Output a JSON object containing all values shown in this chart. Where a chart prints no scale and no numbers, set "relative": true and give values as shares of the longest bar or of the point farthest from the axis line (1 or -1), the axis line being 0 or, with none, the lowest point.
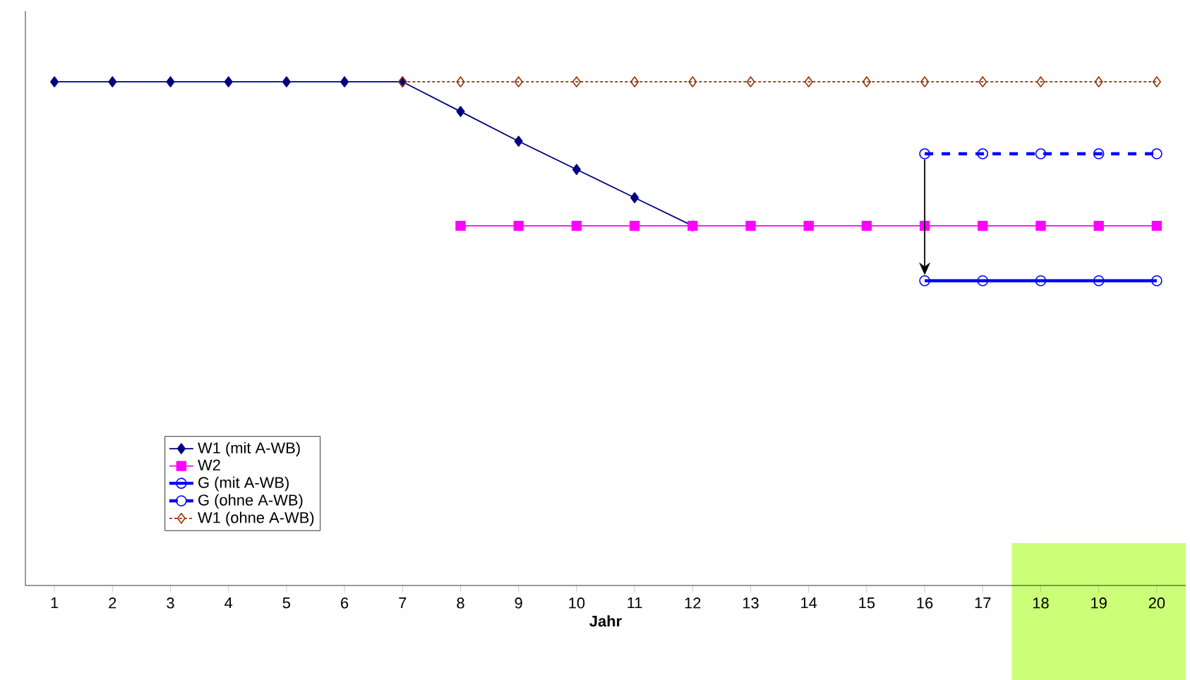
{
  "chart_data": {
    "type": "line",
    "relative": true,
    "xlabel": "Jahr",
    "tick_labels": "x",
    "legend": "bottom left",
    "grid": false,
    "categories": [
      "1",
      "2",
      "3",
      "4",
      "5",
      "6",
      "7",
      "8",
      "9",
      "10",
      "11",
      "12",
      "13",
      "14",
      "15",
      "16",
      "17",
      "18",
      "19",
      "20"
    ],
    "bands": [
      {
        "axis": "x",
        "from": "18",
        "to": "20",
        "color": "#ccff77"
      }
    ],
    "series": [
      {
        "name": "W1 (mit A-WB)",
        "color": "#000080",
        "marker": "diamond",
        "line_style": "solid",
        "values": [
          1,
          1,
          1,
          1,
          1,
          1,
          1,
          0.941,
          0.882,
          0.826,
          0.77,
          0.714,
          null,
          null,
          null,
          null,
          null,
          null,
          null,
          null
        ]
      },
      {
        "name": "W2",
        "color": "#ff00ff",
        "marker": "square",
        "line_style": "solid",
        "values": [
          null,
          null,
          null,
          null,
          null,
          null,
          null,
          0.714,
          0.714,
          0.714,
          0.714,
          0.714,
          0.714,
          0.714,
          0.714,
          0.714,
          0.714,
          0.714,
          0.714,
          0.714
        ]
      },
      {
        "name": "G (mit A-WB)",
        "color": "#0000ff",
        "marker": "circle",
        "line_style": "solid",
        "values": [
          null,
          null,
          null,
          null,
          null,
          null,
          null,
          null,
          null,
          null,
          null,
          null,
          null,
          null,
          null,
          0.605,
          0.605,
          0.605,
          0.605,
          0.605
        ]
      },
      {
        "name": "G (ohne A-WB)",
        "color": "#0000ff",
        "marker": "circle",
        "line_style": "dashed",
        "values": [
          null,
          null,
          null,
          null,
          null,
          null,
          null,
          null,
          null,
          null,
          null,
          null,
          null,
          null,
          null,
          0.857,
          0.857,
          0.857,
          0.857,
          0.857
        ]
      },
      {
        "name": "W1 (ohne A-WB)",
        "color": "#993300",
        "marker": "diamond",
        "line_style": "dotted",
        "values": [
          null,
          null,
          null,
          null,
          null,
          null,
          1,
          1,
          1,
          1,
          1,
          1,
          1,
          1,
          1,
          1,
          1,
          1,
          1,
          1
        ]
      }
    ]
  }
}
